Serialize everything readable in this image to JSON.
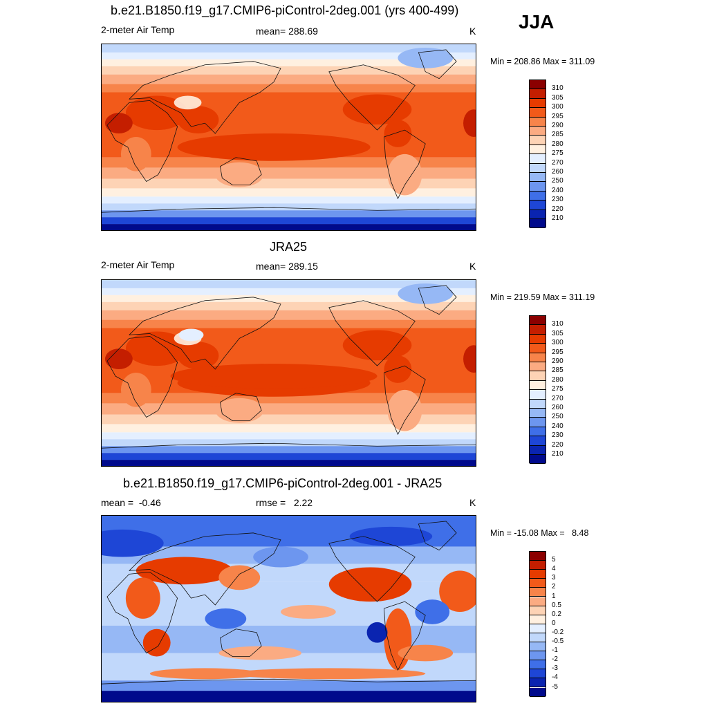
{
  "season": "JJA",
  "panels": [
    {
      "title": "b.e21.B1850.f19_g17.CMIP6-piControl-2deg.001 (yrs 400-499)",
      "left_label": "2-meter Air Temp",
      "center_label": "mean= 288.69",
      "units": "K",
      "minmax": "Min = 208.86 Max = 311.09",
      "field": "model"
    },
    {
      "title": "JRA25",
      "left_label": "2-meter Air Temp",
      "center_label": "mean= 289.15",
      "units": "K",
      "minmax": "Min = 219.59 Max = 311.19",
      "field": "obs"
    },
    {
      "title": "b.e21.B1850.f19_g17.CMIP6-piControl-2deg.001 - JRA25",
      "left_label": "mean =  -0.46",
      "center_label": "rmse =   2.22",
      "units": "K",
      "minmax": "Min = -15.08 Max =   8.48",
      "field": "diff"
    }
  ],
  "colorbars": {
    "temperature": {
      "labels": [
        "310",
        "305",
        "300",
        "295",
        "290",
        "285",
        "280",
        "275",
        "270",
        "260",
        "250",
        "240",
        "230",
        "220",
        "210"
      ],
      "colors": [
        "#8b0000",
        "#c41e00",
        "#e63b00",
        "#f25a1a",
        "#f7844a",
        "#fbab82",
        "#fdd3b5",
        "#fff0e0",
        "#e4efff",
        "#c1d8fb",
        "#96b8f5",
        "#6d96ef",
        "#3f6fe8",
        "#1e46d6",
        "#0a24b0",
        "#000a8c"
      ]
    },
    "difference": {
      "labels": [
        "5",
        "4",
        "3",
        "2",
        "1",
        "0.5",
        "0.2",
        "0",
        "-0.2",
        "-0.5",
        "-1",
        "-2",
        "-3",
        "-4",
        "-5"
      ],
      "colors": [
        "#8b0000",
        "#c41e00",
        "#e63b00",
        "#f25a1a",
        "#f7844a",
        "#fbab82",
        "#fdd3b5",
        "#fff0e0",
        "#e4efff",
        "#c1d8fb",
        "#96b8f5",
        "#6d96ef",
        "#3f6fe8",
        "#1e46d6",
        "#0a24b0",
        "#000a8c"
      ]
    }
  }
}
